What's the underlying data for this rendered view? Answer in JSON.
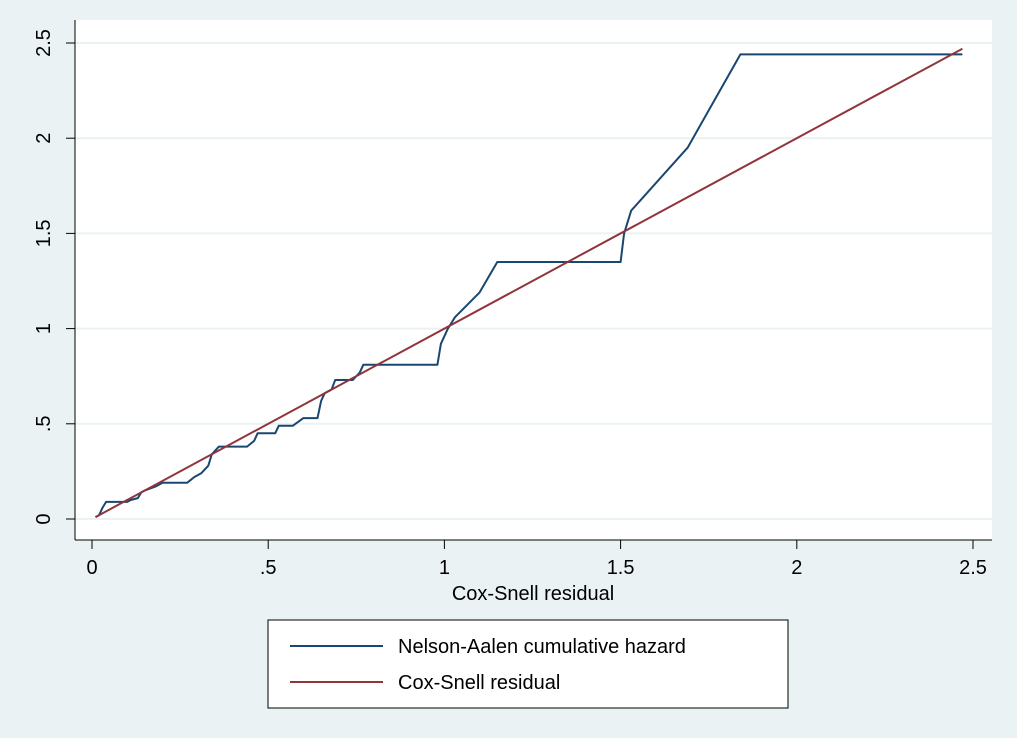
{
  "chart_data": {
    "type": "line",
    "xlabel": "Cox-Snell residual",
    "ylabel": "",
    "xlim": [
      0,
      2.5
    ],
    "ylim": [
      0,
      2.5
    ],
    "xticks": [
      "0",
      ".5",
      "1",
      "1.5",
      "2",
      "2.5"
    ],
    "xtick_values": [
      0,
      0.5,
      1,
      1.5,
      2,
      2.5
    ],
    "yticks": [
      "0",
      ".5",
      "1",
      "1.5",
      "2",
      "2.5"
    ],
    "ytick_values": [
      0,
      0.5,
      1,
      1.5,
      2,
      2.5
    ],
    "grid": "horizontal",
    "legend_position": "bottom",
    "series": [
      {
        "name": "Nelson-Aalen cumulative hazard",
        "color": "#1a476f",
        "points": [
          [
            0.01,
            0.01
          ],
          [
            0.02,
            0.02
          ],
          [
            0.025,
            0.04
          ],
          [
            0.03,
            0.06
          ],
          [
            0.04,
            0.09
          ],
          [
            0.1,
            0.09
          ],
          [
            0.11,
            0.1
          ],
          [
            0.13,
            0.11
          ],
          [
            0.14,
            0.14
          ],
          [
            0.15,
            0.15
          ],
          [
            0.18,
            0.17
          ],
          [
            0.2,
            0.19
          ],
          [
            0.27,
            0.19
          ],
          [
            0.29,
            0.22
          ],
          [
            0.31,
            0.24
          ],
          [
            0.33,
            0.28
          ],
          [
            0.34,
            0.34
          ],
          [
            0.36,
            0.38
          ],
          [
            0.44,
            0.38
          ],
          [
            0.46,
            0.41
          ],
          [
            0.47,
            0.45
          ],
          [
            0.52,
            0.45
          ],
          [
            0.53,
            0.49
          ],
          [
            0.57,
            0.49
          ],
          [
            0.6,
            0.53
          ],
          [
            0.64,
            0.53
          ],
          [
            0.65,
            0.62
          ],
          [
            0.66,
            0.66
          ],
          [
            0.68,
            0.68
          ],
          [
            0.69,
            0.73
          ],
          [
            0.74,
            0.73
          ],
          [
            0.76,
            0.77
          ],
          [
            0.77,
            0.81
          ],
          [
            0.98,
            0.81
          ],
          [
            0.99,
            0.92
          ],
          [
            1.01,
            1.0
          ],
          [
            1.03,
            1.06
          ],
          [
            1.1,
            1.19
          ],
          [
            1.15,
            1.35
          ],
          [
            1.5,
            1.35
          ],
          [
            1.51,
            1.5
          ],
          [
            1.53,
            1.62
          ],
          [
            1.69,
            1.95
          ],
          [
            1.84,
            2.44
          ],
          [
            2.47,
            2.44
          ]
        ]
      },
      {
        "name": "Cox-Snell residual",
        "color": "#90353b",
        "points": [
          [
            0.01,
            0.01
          ],
          [
            2.47,
            2.47
          ]
        ]
      }
    ]
  }
}
